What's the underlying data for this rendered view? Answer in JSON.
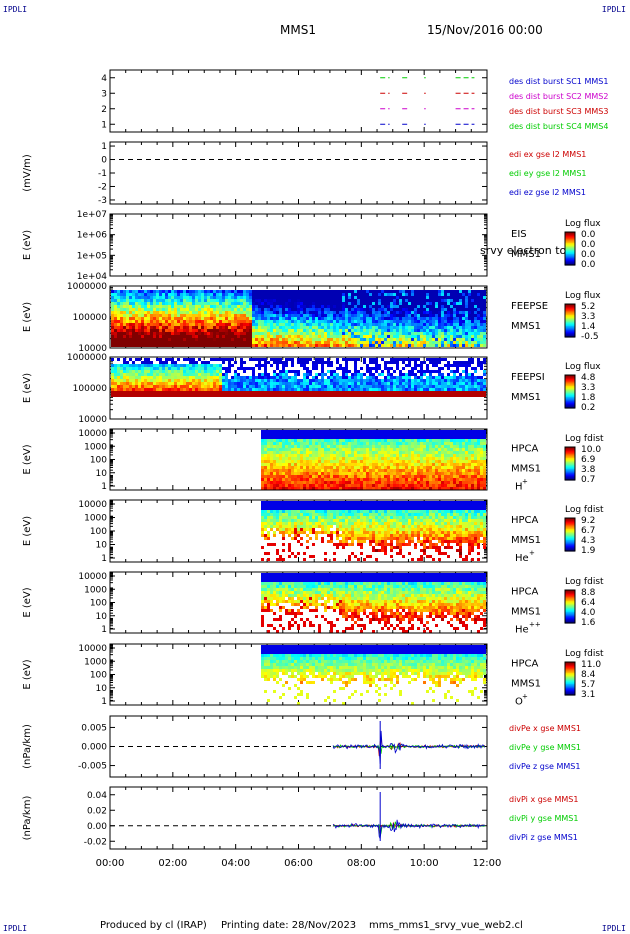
{
  "header": {
    "corner_tl": "IPDLI",
    "corner_tr": "IPDLI",
    "corner_bl": "IPDLI",
    "corner_br": "IPDLI",
    "spacecraft": "MMS1",
    "datetime": "15/Nov/2016 00:00"
  },
  "footer": {
    "produced": "Produced by cl (IRAP)",
    "printing": "Printing date: 28/Nov/2023",
    "file": "mms_mms1_srvy_vue_web2.cl"
  },
  "colors": {
    "mms1": "#0000cc",
    "mms2": "#cc00cc",
    "mms3": "#cc0000",
    "mms4": "#00cc00",
    "dash": "#000000"
  },
  "chart_data": [
    {
      "type": "line",
      "panel": "des-dist-burst",
      "ylabel": "",
      "ylim": [
        0.5,
        4.5
      ],
      "yticks": [
        "1",
        "2",
        "3",
        "4"
      ],
      "legend": [
        {
          "label": "des dist burst SC1 MMS1",
          "color": "#0000cc"
        },
        {
          "label": "des dist burst SC2 MMS2",
          "color": "#cc00cc"
        },
        {
          "label": "des dist burst SC3 MMS3",
          "color": "#cc0000"
        },
        {
          "label": "des dist burst SC4 MMS4",
          "color": "#00cc00"
        }
      ],
      "series": [
        {
          "level": 4,
          "color": "#00cc00",
          "segments": [
            [
              8.6,
              8.9
            ],
            [
              9.3,
              9.5
            ],
            [
              10.0,
              10.05
            ],
            [
              11.0,
              11.6
            ]
          ]
        },
        {
          "level": 3,
          "color": "#cc0000",
          "segments": [
            [
              8.6,
              8.9
            ],
            [
              9.3,
              9.5
            ],
            [
              10.0,
              10.05
            ],
            [
              11.0,
              11.6
            ]
          ]
        },
        {
          "level": 2,
          "color": "#cc00cc",
          "segments": [
            [
              8.6,
              8.9
            ],
            [
              9.3,
              9.5
            ],
            [
              10.0,
              10.05
            ],
            [
              11.0,
              11.6
            ]
          ]
        },
        {
          "level": 1,
          "color": "#0000cc",
          "segments": [
            [
              8.6,
              8.9
            ],
            [
              9.3,
              9.5
            ],
            [
              10.0,
              10.05
            ],
            [
              11.0,
              11.6
            ]
          ]
        }
      ]
    },
    {
      "type": "line",
      "panel": "edi-e",
      "ylabel": "(mV/m)",
      "ylim": [
        -3.3,
        1.3
      ],
      "yticks": [
        "1",
        "0",
        "-1",
        "-2",
        "-3"
      ],
      "legend": [
        {
          "label": "edi ex gse l2 MMS1",
          "color": "#cc0000"
        },
        {
          "label": "edi ey gse l2 MMS1",
          "color": "#00cc00"
        },
        {
          "label": "edi ez gse l2 MMS1",
          "color": "#0000cc"
        }
      ],
      "zero_line": true
    },
    {
      "type": "heatmap",
      "panel": "eis",
      "ylabel": "E (eV)",
      "yscale": "log",
      "yticks": [
        "1e+07",
        "1e+06",
        "1e+05",
        "1e+04"
      ],
      "instrument": "EIS",
      "sub": "MMS1",
      "overlay": "srvy electron to",
      "colorbar": {
        "label": "Log flux",
        "ticks": [
          "0.0",
          "0.0",
          "0.0",
          "0.0"
        ]
      },
      "empty": true
    },
    {
      "type": "heatmap",
      "panel": "feeps-e",
      "ylabel": "E (eV)",
      "yscale": "log",
      "yticks": [
        "1000000",
        "100000",
        "10000"
      ],
      "instrument": "FEEPSE",
      "sub": "MMS1",
      "colorbar": {
        "label": "Log flux",
        "ticks": [
          "5.2",
          "3.3",
          "1.4",
          "-0.5"
        ]
      }
    },
    {
      "type": "heatmap",
      "panel": "feeps-i",
      "ylabel": "E (eV)",
      "yscale": "log",
      "yticks": [
        "1000000",
        "100000",
        "10000"
      ],
      "instrument": "FEEPSI",
      "sub": "MMS1",
      "colorbar": {
        "label": "Log flux",
        "ticks": [
          "4.8",
          "3.3",
          "1.8",
          "0.2"
        ]
      }
    },
    {
      "type": "heatmap",
      "panel": "hpca-h",
      "ylabel": "E (eV)",
      "yscale": "log",
      "yticks": [
        "10000",
        "1000",
        "100",
        "10",
        "1"
      ],
      "instrument": "HPCA",
      "sub": "MMS1",
      "species": "H",
      "charge": "+",
      "colorbar": {
        "label": "Log fdist",
        "ticks": [
          "10.0",
          "6.9",
          "3.8",
          "0.7"
        ]
      }
    },
    {
      "type": "heatmap",
      "panel": "hpca-he",
      "ylabel": "E (eV)",
      "yscale": "log",
      "yticks": [
        "10000",
        "1000",
        "100",
        "10",
        "1"
      ],
      "instrument": "HPCA",
      "sub": "MMS1",
      "species": "He",
      "charge": "+",
      "colorbar": {
        "label": "Log fdist",
        "ticks": [
          "9.2",
          "6.7",
          "4.3",
          "1.9"
        ]
      }
    },
    {
      "type": "heatmap",
      "panel": "hpca-he2",
      "ylabel": "E (eV)",
      "yscale": "log",
      "yticks": [
        "10000",
        "1000",
        "100",
        "10",
        "1"
      ],
      "instrument": "HPCA",
      "sub": "MMS1",
      "species": "He",
      "charge": "++",
      "colorbar": {
        "label": "Log fdist",
        "ticks": [
          "8.8",
          "6.4",
          "4.0",
          "1.6"
        ]
      }
    },
    {
      "type": "heatmap",
      "panel": "hpca-o",
      "ylabel": "E (eV)",
      "yscale": "log",
      "yticks": [
        "10000",
        "1000",
        "100",
        "10",
        "1"
      ],
      "instrument": "HPCA",
      "sub": "MMS1",
      "species": "O",
      "charge": "+",
      "colorbar": {
        "label": "Log fdist",
        "ticks": [
          "11.0",
          "8.4",
          "5.7",
          "3.1"
        ]
      }
    },
    {
      "type": "line",
      "panel": "divpe",
      "ylabel": "(nPa/km)",
      "ylim": [
        -0.008,
        0.008
      ],
      "yticks": [
        "0.005",
        "0.000",
        "-0.005"
      ],
      "legend": [
        {
          "label": "divPe x gse MMS1",
          "color": "#cc0000"
        },
        {
          "label": "divPe y gse MMS1",
          "color": "#00cc00"
        },
        {
          "label": "divPe z gse MMS1",
          "color": "#0000cc"
        }
      ],
      "zero_line": true,
      "spike_time": 8.6
    },
    {
      "type": "line",
      "panel": "divpi",
      "ylabel": "(nPa/km)",
      "ylim": [
        -0.03,
        0.05
      ],
      "yticks": [
        "0.04",
        "0.02",
        "0.00",
        "-0.02"
      ],
      "legend": [
        {
          "label": "divPi x gse MMS1",
          "color": "#cc0000"
        },
        {
          "label": "divPi y gse MMS1",
          "color": "#00cc00"
        },
        {
          "label": "divPi z gse MMS1",
          "color": "#0000cc"
        }
      ],
      "zero_line": true,
      "spike_time": 8.6
    }
  ],
  "xaxis": {
    "ticks": [
      "00:00",
      "02:00",
      "04:00",
      "06:00",
      "08:00",
      "10:00",
      "12:00"
    ]
  }
}
